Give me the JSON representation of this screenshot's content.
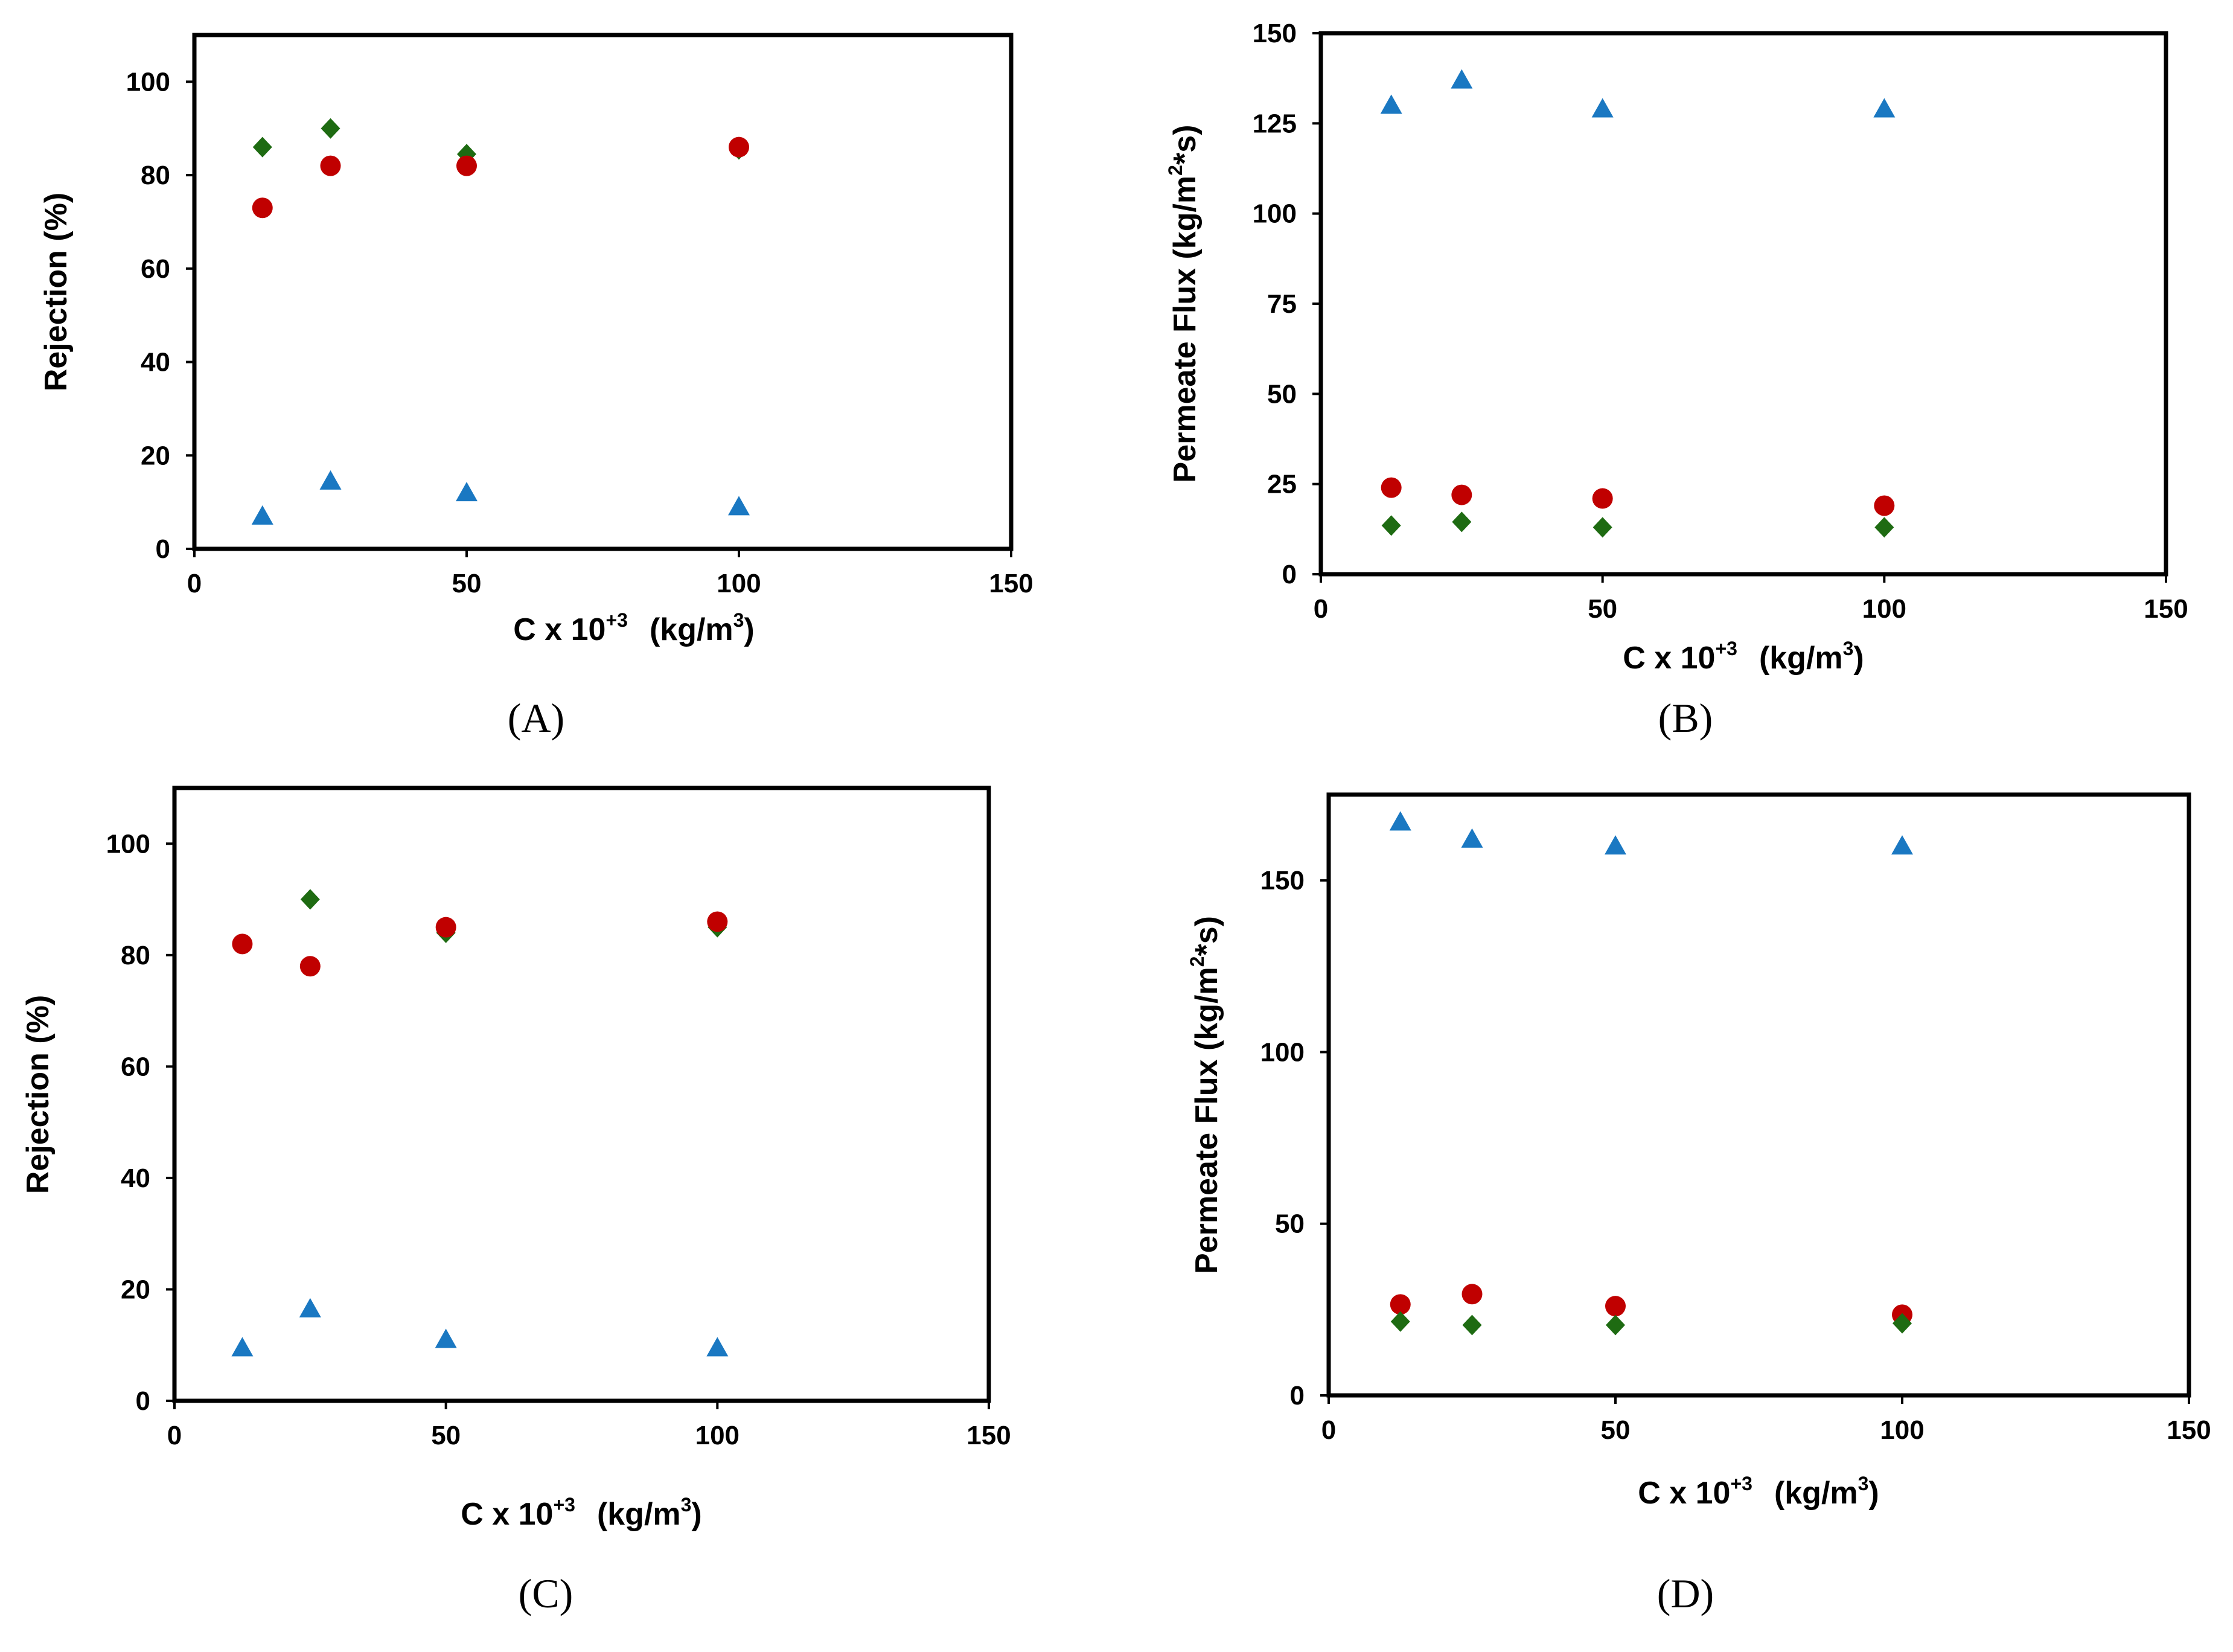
{
  "colors": {
    "triangle": "#1a78c2",
    "circle": "#c00000",
    "diamond": "#1e6b12"
  },
  "chart_data": [
    {
      "panel": "(A)",
      "type": "scatter",
      "xlabel": {
        "base": "C x 10",
        "exp": "+3",
        "unit": "(kg/m",
        "unit_exp": "3",
        "close": ")"
      },
      "ylabel": "Rejection (%)",
      "xlim": [
        0,
        150
      ],
      "ylim": [
        0,
        110
      ],
      "xticks": [
        "0",
        "50",
        "100",
        "150"
      ],
      "yticks": [
        "0",
        "20",
        "40",
        "60",
        "80",
        "100"
      ],
      "series": [
        {
          "name": "diamond",
          "marker": "diamond",
          "x": [
            12.5,
            25,
            50,
            100
          ],
          "y": [
            86,
            90,
            84.5,
            85.5
          ]
        },
        {
          "name": "circle",
          "marker": "circle",
          "x": [
            12.5,
            25,
            50,
            100
          ],
          "y": [
            73,
            82,
            82,
            86
          ]
        },
        {
          "name": "triangle",
          "marker": "triangle",
          "x": [
            12.5,
            25,
            50,
            100
          ],
          "y": [
            7,
            14.5,
            12,
            9
          ]
        }
      ]
    },
    {
      "panel": "(B)",
      "type": "scatter",
      "xlabel": {
        "base": "C x 10",
        "exp": "+3",
        "unit": "(kg/m",
        "unit_exp": "3",
        "close": ")"
      },
      "ylabel": {
        "base": "Permeate Flux (kg/m",
        "exp": "2",
        "tail": "*s)"
      },
      "xlim": [
        0,
        150
      ],
      "ylim": [
        0,
        150
      ],
      "xticks": [
        "0",
        "50",
        "100",
        "150"
      ],
      "yticks": [
        "0",
        "25",
        "50",
        "75",
        "100",
        "125",
        "150"
      ],
      "series": [
        {
          "name": "triangle",
          "marker": "triangle",
          "x": [
            12.5,
            25,
            50,
            100
          ],
          "y": [
            130,
            137,
            129,
            129
          ]
        },
        {
          "name": "circle",
          "marker": "circle",
          "x": [
            12.5,
            25,
            50,
            100
          ],
          "y": [
            24,
            22,
            21,
            19
          ]
        },
        {
          "name": "diamond",
          "marker": "diamond",
          "x": [
            12.5,
            25,
            50,
            100
          ],
          "y": [
            13.5,
            14.5,
            13,
            13
          ]
        }
      ]
    },
    {
      "panel": "(C)",
      "type": "scatter",
      "xlabel": {
        "base": "C x 10",
        "exp": "+3",
        "unit": "(kg/m",
        "unit_exp": "3",
        "close": ")"
      },
      "ylabel": "Rejection (%)",
      "xlim": [
        0,
        150
      ],
      "ylim": [
        0,
        110
      ],
      "xticks": [
        "0",
        "50",
        "100",
        "150"
      ],
      "yticks": [
        "0",
        "20",
        "40",
        "60",
        "80",
        "100"
      ],
      "series": [
        {
          "name": "diamond",
          "marker": "diamond",
          "x": [
            12.5,
            25,
            50,
            100
          ],
          "y": [
            82,
            90,
            84,
            85
          ]
        },
        {
          "name": "circle",
          "marker": "circle",
          "x": [
            12.5,
            25,
            50,
            100
          ],
          "y": [
            82,
            78,
            85,
            86
          ]
        },
        {
          "name": "triangle",
          "marker": "triangle",
          "x": [
            12.5,
            25,
            50,
            100
          ],
          "y": [
            9.5,
            16.5,
            11,
            9.5
          ]
        }
      ]
    },
    {
      "panel": "(D)",
      "type": "scatter",
      "xlabel": {
        "base": "C x 10",
        "exp": "+3",
        "unit": "(kg/m",
        "unit_exp": "3",
        "close": ")"
      },
      "ylabel": {
        "base": "Permeate Flux (kg/m",
        "exp": "2",
        "tail": "*s)"
      },
      "xlim": [
        0,
        150
      ],
      "ylim": [
        0,
        175
      ],
      "xticks": [
        "0",
        "50",
        "100",
        "150"
      ],
      "yticks": [
        "0",
        "50",
        "100",
        "150"
      ],
      "series": [
        {
          "name": "triangle",
          "marker": "triangle",
          "x": [
            12.5,
            25,
            50,
            100
          ],
          "y": [
            167,
            162,
            160,
            160
          ]
        },
        {
          "name": "circle",
          "marker": "circle",
          "x": [
            12.5,
            25,
            50,
            100
          ],
          "y": [
            26.5,
            29.5,
            26,
            23.5
          ]
        },
        {
          "name": "diamond",
          "marker": "diamond",
          "x": [
            12.5,
            25,
            50,
            100
          ],
          "y": [
            21.5,
            20.5,
            20.5,
            21
          ]
        }
      ]
    }
  ]
}
